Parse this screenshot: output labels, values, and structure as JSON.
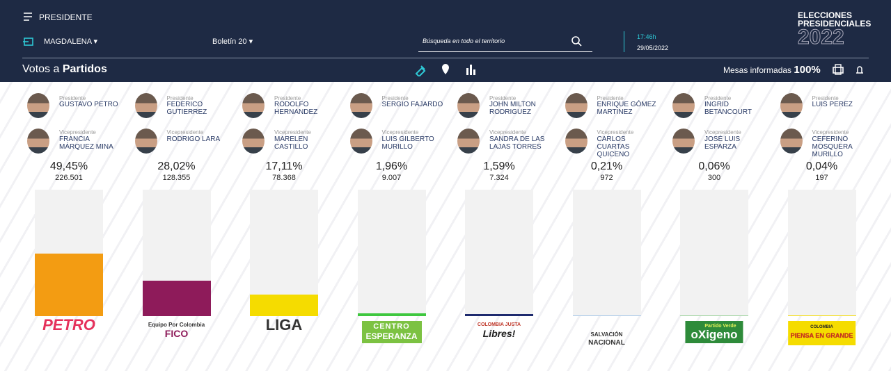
{
  "header": {
    "section": "PRESIDENTE",
    "region": "MAGDALENA",
    "bulletin": "Boletín 20",
    "search_placeholder": "Búsqueda en todo el territorio",
    "time": "17:46h",
    "date": "29/05/2022",
    "brand": [
      "ELECCIONES",
      "PRESIDENCIALES",
      "2022"
    ]
  },
  "subheader": {
    "title_prefix": "Votos a",
    "title": "Partidos",
    "reported_label": "Mesas informadas",
    "reported_value": "100%"
  },
  "labels": {
    "president": "Presidente",
    "vice": "Vicepresidente"
  },
  "candidates": [
    {
      "president": "GUSTAVO PETRO",
      "vice": "FRANCIA MÁRQUEZ MINA",
      "percent": 49.45,
      "percent_label": "49,45%",
      "votes": "226.501",
      "color": "#f39c12",
      "logo": [
        "PETRO"
      ]
    },
    {
      "president": "FEDERICO GUTIERREZ",
      "vice": "RODRIGO LARA",
      "percent": 28.02,
      "percent_label": "28,02%",
      "votes": "128.355",
      "color": "#8e1b5a",
      "logo": [
        "Equipo Por Colombia",
        "FICO"
      ]
    },
    {
      "president": "RODOLFO HERNANDEZ",
      "vice": "MARELEN CASTILLO",
      "percent": 17.11,
      "percent_label": "17,11%",
      "votes": "78.368",
      "color": "#f5dc00",
      "logo": [
        "LIGA"
      ]
    },
    {
      "president": "SERGIO FAJARDO",
      "vice": "LUIS GILBERTO MURILLO",
      "percent": 1.96,
      "percent_label": "1,96%",
      "votes": "9.007",
      "color": "#3ec73e",
      "logo": [
        "CENTRO",
        "ESPERANZA"
      ]
    },
    {
      "president": "JOHN MILTON RODRIGUEZ",
      "vice": "SANDRA DE LAS LAJAS TORRES",
      "percent": 1.59,
      "percent_label": "1,59%",
      "votes": "7.324",
      "color": "#1e2a6e",
      "logo": [
        "COLOMBIA JUSTA",
        "Libres!"
      ]
    },
    {
      "president": "ENRIQUE GÓMEZ MARTINEZ",
      "vice": "CARLOS CUARTAS QUICENO",
      "percent": 0.21,
      "percent_label": "0,21%",
      "votes": "972",
      "color": "#a8c8e8",
      "logo": [
        "SALVACIÓN",
        "NACIONAL"
      ]
    },
    {
      "president": "INGRID BETANCOURT",
      "vice": "JOSÉ LUIS ESPARZA",
      "percent": 0.06,
      "percent_label": "0,06%",
      "votes": "300",
      "color": "#9ad29a",
      "logo": [
        "Partido Verde",
        "oXigeno"
      ]
    },
    {
      "president": "LUIS PEREZ",
      "vice": "CEFERINO MOSQUERA MURILLO",
      "percent": 0.04,
      "percent_label": "0,04%",
      "votes": "197",
      "color": "#f5dc00",
      "logo": [
        "COLOMBIA",
        "PIENSA EN GRANDE"
      ]
    }
  ]
}
